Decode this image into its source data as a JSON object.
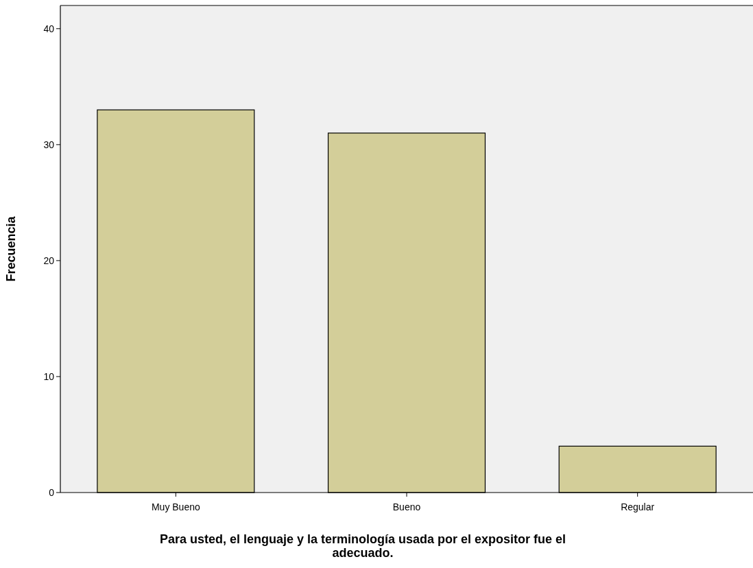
{
  "chart_data": {
    "type": "bar",
    "xlabel": "Para usted, el lenguaje y la terminología usada por el expositor fue el adecuado.",
    "ylabel": "Frecuencia",
    "categories": [
      "Muy Bueno",
      "Bueno",
      "Regular"
    ],
    "values": [
      33,
      31,
      4
    ],
    "color": "#d3ce99",
    "ylim": [
      0,
      42
    ],
    "yticks": [
      0,
      10,
      20,
      30,
      40
    ],
    "grid": false
  }
}
